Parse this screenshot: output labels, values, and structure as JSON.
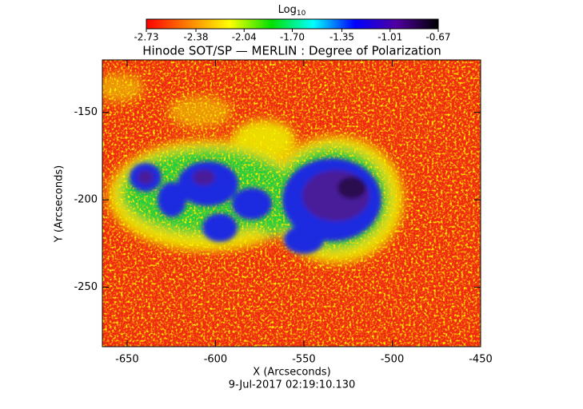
{
  "chart_data": {
    "type": "heatmap",
    "title": "Hinode SOT/SP — MERLIN : Degree of Polarization",
    "subtitle": "9-Jul-2017 02:19:10.130",
    "x_label": "X (Arcseconds)",
    "y_label": "Y (Arcseconds)",
    "colorbar_label": "Log",
    "colorbar_label_sub": "10",
    "colormap": [
      "#ff0000",
      "#ff8000",
      "#ffff00",
      "#00e000",
      "#00ffff",
      "#0000ff",
      "#5000a0",
      "#000000"
    ],
    "clim": [
      -2.73,
      -0.67
    ],
    "cticks": [
      -2.73,
      -2.38,
      -2.04,
      {
        "value": -1.7,
        "label": "-1.70"
      },
      -1.35,
      -1.01,
      -0.67
    ],
    "xlim": [
      -664,
      -450
    ],
    "xticks": [
      -650,
      -600,
      -550,
      -500,
      -450
    ],
    "ylim": [
      -284,
      -120
    ],
    "yticks": [
      -150,
      -200,
      -250
    ]
  }
}
